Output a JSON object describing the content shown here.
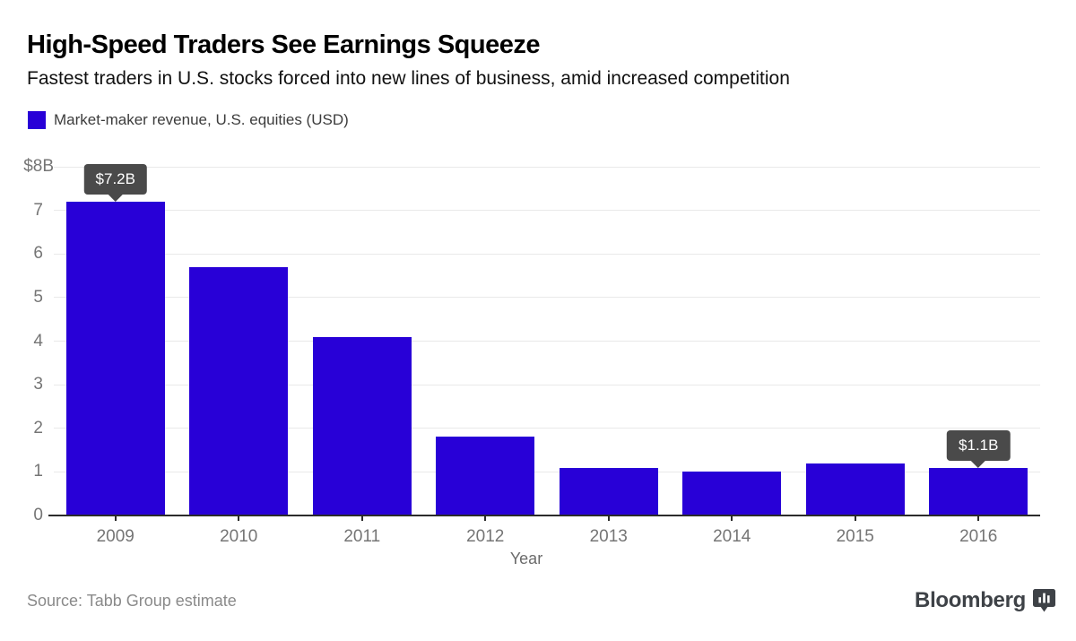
{
  "header": {
    "title": "High-Speed Traders See Earnings Squeeze",
    "subtitle": "Fastest traders in U.S. stocks forced into new lines of business, amid increased competition"
  },
  "legend": {
    "label": "Market-maker revenue, U.S. equities (USD)",
    "swatch_color": "#2800d7"
  },
  "chart_data": {
    "type": "bar",
    "categories": [
      "2009",
      "2010",
      "2011",
      "2012",
      "2013",
      "2014",
      "2015",
      "2016"
    ],
    "values": [
      7.2,
      5.7,
      4.1,
      1.8,
      1.1,
      1.0,
      1.2,
      1.1
    ],
    "series_name": "Market-maker revenue, U.S. equities (USD)",
    "title": "High-Speed Traders See Earnings Squeeze",
    "xlabel": "Year",
    "ylabel": "",
    "ylim": [
      0,
      8
    ],
    "yticks": [
      "$8B",
      "7",
      "6",
      "5",
      "4",
      "3",
      "2",
      "1",
      "0"
    ],
    "grid": true,
    "legend_position": "top-left",
    "bar_color": "#2800d7",
    "annotations": [
      {
        "category": "2009",
        "label": "$7.2B"
      },
      {
        "category": "2016",
        "label": "$1.1B"
      }
    ]
  },
  "footer": {
    "source": "Source: Tabb Group estimate",
    "brand": "Bloomberg",
    "brand_icon": "bloomberg-terminal-icon",
    "tooltip_bg": "#4a4a4a"
  }
}
